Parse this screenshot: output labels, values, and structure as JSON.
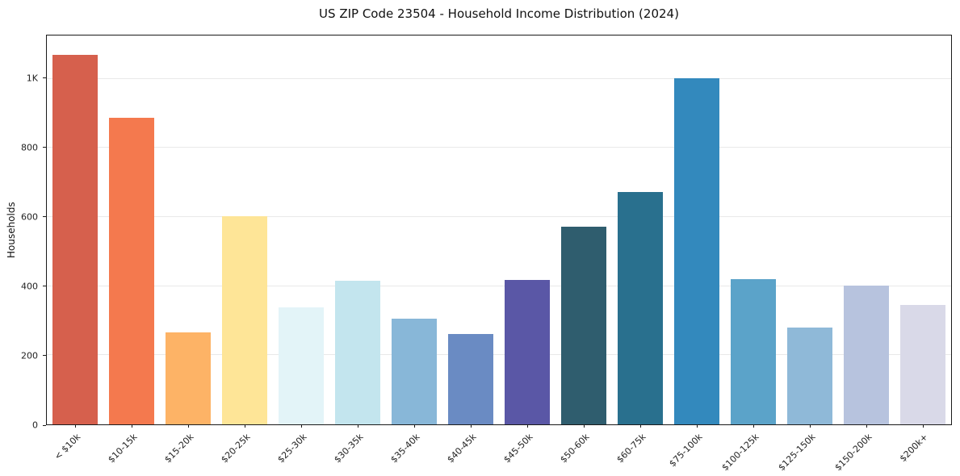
{
  "chart_data": {
    "type": "bar",
    "title": "US ZIP Code 23504 - Household Income Distribution (2024)",
    "xlabel": "",
    "ylabel": "Households",
    "categories": [
      "< $10k",
      "$10-15k",
      "$15-20k",
      "$20-25k",
      "$25-30k",
      "$30-35k",
      "$35-40k",
      "$40-45k",
      "$45-50k",
      "$50-60k",
      "$60-75k",
      "$75-100k",
      "$100-125k",
      "$125-150k",
      "$150-200k",
      "$200k+"
    ],
    "values": [
      1070,
      888,
      265,
      602,
      338,
      415,
      306,
      262,
      418,
      571,
      673,
      1002,
      421,
      279,
      402,
      346
    ],
    "bar_colors": [
      "#d6604d",
      "#f4794e",
      "#fdb366",
      "#fee597",
      "#e3f4f8",
      "#c3e5ee",
      "#88b7d8",
      "#6a8bc3",
      "#5a57a6",
      "#2f5d6e",
      "#29708e",
      "#3389bd",
      "#5ba3c9",
      "#8fb9d8",
      "#b7c3de",
      "#d9d9e8"
    ],
    "ylim": [
      0,
      1125
    ],
    "yticks": [
      {
        "value": 0,
        "label": "0"
      },
      {
        "value": 200,
        "label": "200"
      },
      {
        "value": 400,
        "label": "400"
      },
      {
        "value": 600,
        "label": "600"
      },
      {
        "value": 800,
        "label": "800"
      },
      {
        "value": 1000,
        "label": "1K"
      }
    ],
    "grid_values": [
      200,
      400,
      600,
      800,
      1000
    ],
    "grid": true,
    "legend": "none"
  }
}
